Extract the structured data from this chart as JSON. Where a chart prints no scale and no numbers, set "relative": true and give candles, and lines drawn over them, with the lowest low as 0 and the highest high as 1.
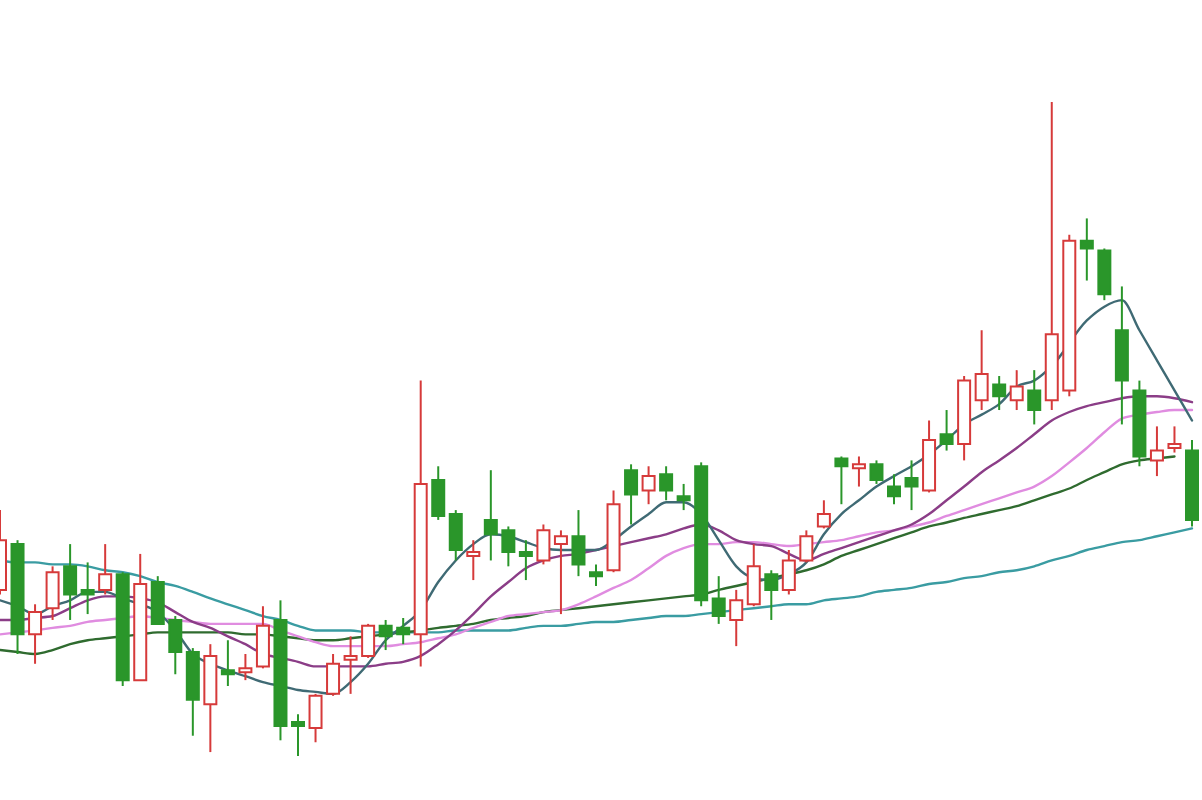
{
  "chart_data": {
    "type": "candlestick",
    "relative": true,
    "categories": [
      null,
      null,
      null,
      null,
      null,
      null,
      null,
      null,
      null,
      null,
      null,
      null,
      null,
      null,
      null,
      null,
      null,
      null,
      null,
      null,
      null,
      null,
      null,
      null,
      null,
      null,
      null,
      null,
      null,
      null,
      null,
      null,
      null,
      null,
      null,
      null,
      null,
      null,
      null,
      null,
      null,
      null,
      null,
      null,
      null,
      null,
      null,
      null,
      null,
      null,
      null,
      null,
      null,
      null,
      null,
      null,
      null,
      null,
      null,
      null,
      null,
      null,
      null,
      null,
      null,
      null,
      null,
      null,
      null
    ],
    "ohlc": [
      [
        0.254,
        0.376,
        0.247,
        0.33
      ],
      [
        0.324,
        0.33,
        0.156,
        0.186
      ],
      [
        0.186,
        0.232,
        0.141,
        0.22
      ],
      [
        0.226,
        0.29,
        0.208,
        0.281
      ],
      [
        0.29,
        0.324,
        0.208,
        0.247
      ],
      [
        0.254,
        0.296,
        0.217,
        0.247
      ],
      [
        0.254,
        0.324,
        0.247,
        0.278
      ],
      [
        0.278,
        0.281,
        0.107,
        0.116
      ],
      [
        0.116,
        0.309,
        0.116,
        0.263
      ],
      [
        0.266,
        0.275,
        0.202,
        0.202
      ],
      [
        0.208,
        0.214,
        0.125,
        0.159
      ],
      [
        0.159,
        0.165,
        0.031,
        0.086
      ],
      [
        0.079,
        0.171,
        0.006,
        0.153
      ],
      [
        0.131,
        0.177,
        0.107,
        0.125
      ],
      [
        0.128,
        0.156,
        0.116,
        0.134
      ],
      [
        0.137,
        0.229,
        0.134,
        0.199
      ],
      [
        0.208,
        0.238,
        0.024,
        0.046
      ],
      [
        0.052,
        0.064,
        0,
        0.046
      ],
      [
        0.043,
        0.095,
        0.021,
        0.092
      ],
      [
        0.095,
        0.156,
        0.092,
        0.141
      ],
      [
        0.147,
        0.183,
        0.095,
        0.153
      ],
      [
        0.153,
        0.202,
        0.15,
        0.199
      ],
      [
        0.199,
        0.208,
        0.162,
        0.183
      ],
      [
        0.196,
        0.211,
        0.171,
        0.186
      ],
      [
        0.186,
        0.574,
        0.137,
        0.416
      ],
      [
        0.422,
        0.443,
        0.361,
        0.367
      ],
      [
        0.37,
        0.376,
        0.299,
        0.315
      ],
      [
        0.306,
        0.33,
        0.269,
        0.312
      ],
      [
        0.361,
        0.437,
        0.299,
        0.339
      ],
      [
        0.345,
        0.351,
        0.29,
        0.312
      ],
      [
        0.312,
        0.33,
        0.269,
        0.306
      ],
      [
        0.299,
        0.354,
        0.293,
        0.345
      ],
      [
        0.324,
        0.345,
        0.217,
        0.336
      ],
      [
        0.336,
        0.376,
        0.275,
        0.293
      ],
      [
        0.281,
        0.293,
        0.26,
        0.275
      ],
      [
        0.284,
        0.406,
        0.281,
        0.385
      ],
      [
        0.437,
        0.446,
        0.354,
        0.4
      ],
      [
        0.406,
        0.443,
        0.385,
        0.428
      ],
      [
        0.431,
        0.443,
        0.391,
        0.406
      ],
      [
        0.397,
        0.416,
        0.376,
        0.391
      ],
      [
        0.443,
        0.449,
        0.229,
        0.238
      ],
      [
        0.241,
        0.275,
        0.202,
        0.214
      ],
      [
        0.208,
        0.254,
        0.168,
        0.238
      ],
      [
        0.232,
        0.324,
        0.229,
        0.29
      ],
      [
        0.278,
        0.284,
        0.208,
        0.254
      ],
      [
        0.254,
        0.315,
        0.247,
        0.299
      ],
      [
        0.299,
        0.345,
        0.296,
        0.336
      ],
      [
        0.351,
        0.391,
        0.348,
        0.37
      ],
      [
        0.455,
        0.458,
        0.385,
        0.443
      ],
      [
        0.44,
        0.458,
        0.412,
        0.446
      ],
      [
        0.446,
        0.452,
        0.416,
        0.422
      ],
      [
        0.412,
        0.431,
        0.385,
        0.397
      ],
      [
        0.425,
        0.452,
        0.376,
        0.412
      ],
      [
        0.406,
        0.513,
        0.403,
        0.483
      ],
      [
        0.492,
        0.529,
        0.467,
        0.477
      ],
      [
        0.477,
        0.581,
        0.452,
        0.574
      ],
      [
        0.544,
        0.651,
        0.529,
        0.584
      ],
      [
        0.568,
        0.581,
        0.529,
        0.55
      ],
      [
        0.544,
        0.59,
        0.529,
        0.565
      ],
      [
        0.559,
        0.59,
        0.507,
        0.529
      ],
      [
        0.544,
        1,
        0.529,
        0.645
      ],
      [
        0.559,
        0.797,
        0.55,
        0.788
      ],
      [
        0.788,
        0.822,
        0.727,
        0.776
      ],
      [
        0.773,
        0.776,
        0.697,
        0.706
      ],
      [
        0.651,
        0.718,
        0.507,
        0.574
      ],
      [
        0.559,
        0.574,
        0.443,
        0.458
      ],
      [
        0.452,
        0.504,
        0.428,
        0.467
      ],
      [
        0.471,
        0.504,
        0.464,
        0.477
      ],
      [
        0.467,
        0.483,
        0.351,
        0.361
      ]
    ],
    "colors": [
      "#d63a3a",
      "#2a962a",
      "#d63a3a",
      "#d63a3a",
      "#2a962a",
      "#2a962a",
      "#d63a3a",
      "#2a962a",
      "#d63a3a",
      "#2a962a",
      "#2a962a",
      "#2a962a",
      "#d63a3a",
      "#2a962a",
      "#d63a3a",
      "#d63a3a",
      "#2a962a",
      "#2a962a",
      "#d63a3a",
      "#d63a3a",
      "#d63a3a",
      "#d63a3a",
      "#2a962a",
      "#2a962a",
      "#d63a3a",
      "#2a962a",
      "#2a962a",
      "#d63a3a",
      "#2a962a",
      "#2a962a",
      "#2a962a",
      "#d63a3a",
      "#d63a3a",
      "#2a962a",
      "#2a962a",
      "#d63a3a",
      "#2a962a",
      "#d63a3a",
      "#2a962a",
      "#2a962a",
      "#2a962a",
      "#2a962a",
      "#d63a3a",
      "#d63a3a",
      "#2a962a",
      "#d63a3a",
      "#d63a3a",
      "#d63a3a",
      "#2a962a",
      "#d63a3a",
      "#2a962a",
      "#2a962a",
      "#2a962a",
      "#d63a3a",
      "#2a962a",
      "#d63a3a",
      "#d63a3a",
      "#2a962a",
      "#d63a3a",
      "#2a962a",
      "#d63a3a",
      "#d63a3a",
      "#2a962a",
      "#2a962a",
      "#2a962a",
      "#2a962a",
      "#d63a3a",
      "#d63a3a",
      "#2a962a"
    ],
    "series": [
      {
        "type": "line",
        "color": "#3a9ca2",
        "values": [
          0.299,
          0.296,
          0.296,
          0.293,
          0.293,
          0.29,
          0.284,
          0.281,
          0.275,
          0.266,
          0.26,
          0.251,
          0.241,
          0.232,
          0.223,
          0.214,
          0.208,
          0.199,
          0.192,
          0.192,
          0.192,
          0.189,
          0.189,
          0.189,
          0.189,
          0.189,
          0.192,
          0.192,
          0.192,
          0.192,
          0.196,
          0.199,
          0.199,
          0.202,
          0.205,
          0.205,
          0.208,
          0.211,
          0.214,
          0.214,
          0.217,
          0.22,
          0.223,
          0.226,
          0.229,
          0.232,
          0.232,
          0.238,
          0.241,
          0.244,
          0.251,
          0.254,
          0.257,
          0.263,
          0.266,
          0.272,
          0.275,
          0.281,
          0.284,
          0.29,
          0.299,
          0.306,
          0.315,
          0.321,
          0.327,
          0.33,
          0.336,
          0.342,
          0.348
        ]
      },
      {
        "type": "line",
        "color": "#2f6b2f",
        "values": [
          0.162,
          0.159,
          0.156,
          0.162,
          0.171,
          0.177,
          0.18,
          0.183,
          0.186,
          0.189,
          0.189,
          0.189,
          0.189,
          0.189,
          0.186,
          0.186,
          0.183,
          0.18,
          0.177,
          0.177,
          0.18,
          0.183,
          0.186,
          0.189,
          0.192,
          0.196,
          0.199,
          0.202,
          0.208,
          0.211,
          0.214,
          0.22,
          0.223,
          0.226,
          0.229,
          0.232,
          0.235,
          0.238,
          0.241,
          0.244,
          0.247,
          0.254,
          0.26,
          0.266,
          0.272,
          0.278,
          0.284,
          0.293,
          0.306,
          0.315,
          0.324,
          0.333,
          0.342,
          0.351,
          0.357,
          0.364,
          0.37,
          0.376,
          0.382,
          0.391,
          0.4,
          0.409,
          0.422,
          0.434,
          0.446,
          0.452,
          0.455,
          0.458,
          null
        ]
      },
      {
        "type": "line",
        "color": "#e08ce0",
        "values": [
          0.186,
          0.189,
          0.192,
          0.196,
          0.199,
          0.205,
          0.208,
          0.211,
          0.214,
          0.211,
          0.208,
          0.205,
          0.202,
          0.202,
          0.202,
          0.202,
          0.192,
          0.183,
          0.174,
          0.168,
          0.168,
          0.168,
          0.168,
          0.171,
          0.174,
          0.18,
          0.186,
          0.196,
          0.205,
          0.214,
          0.217,
          0.22,
          0.223,
          0.232,
          0.244,
          0.257,
          0.269,
          0.287,
          0.306,
          0.318,
          0.324,
          0.324,
          0.327,
          0.327,
          0.324,
          0.321,
          0.324,
          0.327,
          0.33,
          0.336,
          0.342,
          0.345,
          0.351,
          0.357,
          0.367,
          0.376,
          0.385,
          0.394,
          0.403,
          0.412,
          0.428,
          0.449,
          0.471,
          0.495,
          0.516,
          0.522,
          0.526,
          0.529,
          0.529
        ]
      },
      {
        "type": "line",
        "color": "#8b3d87",
        "values": [
          0.208,
          0.208,
          0.211,
          0.214,
          0.226,
          0.238,
          0.244,
          0.244,
          0.241,
          0.235,
          0.22,
          0.205,
          0.196,
          0.183,
          0.171,
          0.156,
          0.15,
          0.144,
          0.137,
          0.137,
          0.137,
          0.137,
          0.141,
          0.144,
          0.153,
          0.171,
          0.192,
          0.217,
          0.244,
          0.266,
          0.287,
          0.299,
          0.306,
          0.309,
          0.315,
          0.321,
          0.327,
          0.333,
          0.339,
          0.348,
          0.354,
          0.345,
          0.33,
          0.324,
          0.321,
          0.309,
          0.299,
          0.309,
          0.318,
          0.327,
          0.336,
          0.345,
          0.354,
          0.37,
          0.391,
          0.412,
          0.434,
          0.452,
          0.471,
          0.492,
          0.513,
          0.526,
          0.535,
          0.541,
          0.547,
          0.55,
          0.55,
          0.547,
          0.541
        ]
      },
      {
        "type": "line",
        "color": "#3f6a74",
        "values": [
          0.238,
          0.229,
          0.217,
          0.229,
          0.238,
          0.251,
          0.251,
          0.241,
          0.232,
          0.22,
          0.192,
          0.156,
          0.141,
          0.131,
          0.122,
          0.113,
          0.107,
          0.101,
          0.098,
          0.095,
          0.113,
          0.141,
          0.177,
          0.199,
          0.223,
          0.266,
          0.299,
          0.324,
          0.339,
          0.336,
          0.327,
          0.318,
          0.315,
          0.315,
          0.315,
          0.33,
          0.351,
          0.37,
          0.388,
          0.388,
          0.37,
          0.33,
          0.29,
          0.272,
          0.269,
          0.278,
          0.296,
          0.339,
          0.37,
          0.391,
          0.412,
          0.428,
          0.443,
          0.461,
          0.483,
          0.507,
          0.522,
          0.538,
          0.565,
          0.574,
          0.596,
          null,
          0.666,
          0.687,
          0.697,
          0.651,
          0.605,
          0.559,
          0.513
        ]
      }
    ]
  }
}
